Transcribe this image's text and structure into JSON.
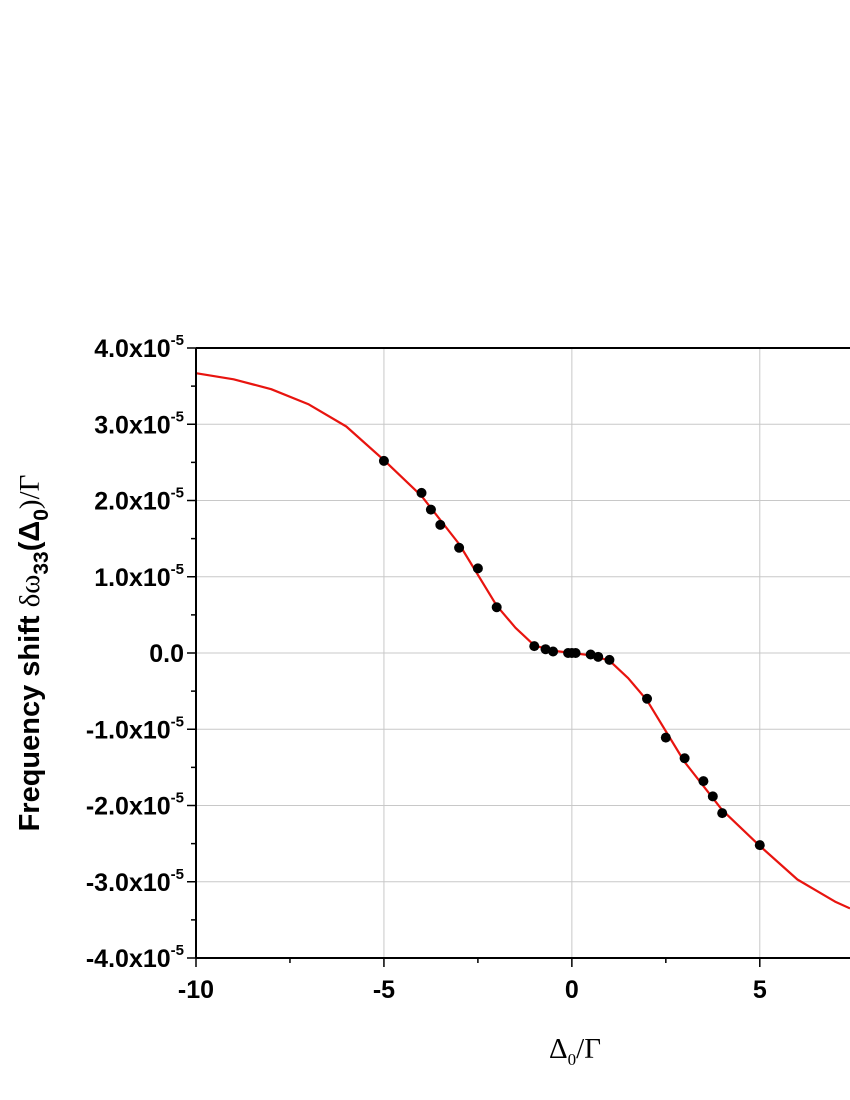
{
  "chart_data": {
    "type": "scatter",
    "title": "",
    "xlabel": {
      "main": "Δ",
      "sub": "0",
      "tail": "/Γ"
    },
    "ylabel": {
      "main": "Frequency shift ",
      "sym": "δω",
      "sub1": "33",
      "mid": "(Δ",
      "sub2": "0",
      "tail": ")/Γ"
    },
    "xlim": [
      -10,
      7.4
    ],
    "ylim": [
      -4e-05,
      4e-05
    ],
    "grid": true,
    "x_ticks": [
      {
        "value": -10,
        "label": "-10"
      },
      {
        "value": -5,
        "label": "-5"
      },
      {
        "value": 0,
        "label": "0"
      },
      {
        "value": 5,
        "label": "5"
      }
    ],
    "y_ticks": [
      {
        "value": 4e-05,
        "mant": "4.0x10",
        "exp": "-5"
      },
      {
        "value": 3e-05,
        "mant": "3.0x10",
        "exp": "-5"
      },
      {
        "value": 2e-05,
        "mant": "2.0x10",
        "exp": "-5"
      },
      {
        "value": 1e-05,
        "mant": "1.0x10",
        "exp": "-5"
      },
      {
        "value": 0,
        "mant": "0.0",
        "exp": ""
      },
      {
        "value": -1e-05,
        "mant": "-1.0x10",
        "exp": "-5"
      },
      {
        "value": -2e-05,
        "mant": "-2.0x10",
        "exp": "-5"
      },
      {
        "value": -3e-05,
        "mant": "-3.0x10",
        "exp": "-5"
      },
      {
        "value": -4e-05,
        "mant": "-4.0x10",
        "exp": "-5"
      }
    ],
    "series": [
      {
        "kind": "line",
        "color": "#e8140f",
        "x": [
          -10,
          -9,
          -8,
          -7,
          -6,
          -5,
          -4,
          -3,
          -2,
          -1.5,
          -1,
          -0.5,
          0,
          0.5,
          1,
          1.5,
          2,
          3,
          4,
          5,
          6,
          7,
          7.4
        ],
        "y": [
          3.67e-05,
          3.59e-05,
          3.46e-05,
          3.26e-05,
          2.97e-05,
          2.53e-05,
          2.06e-05,
          1.43e-05,
          6.2e-06,
          3.3e-06,
          1e-06,
          3e-07,
          0.0,
          -3e-07,
          -1e-06,
          -3.3e-06,
          -6.2e-06,
          -1.43e-05,
          -2.06e-05,
          -2.53e-05,
          -2.97e-05,
          -3.26e-05,
          -3.35e-05
        ]
      },
      {
        "kind": "scatter",
        "color": "#000000",
        "x": [
          -5,
          -4,
          -3.75,
          -3.5,
          -3,
          -2.5,
          -2,
          -1,
          -0.7,
          -0.5,
          -0.1,
          0,
          0.1,
          0.5,
          0.7,
          1,
          2,
          2.5,
          3,
          3.5,
          3.75,
          4,
          5
        ],
        "y": [
          2.52e-05,
          2.1e-05,
          1.88e-05,
          1.68e-05,
          1.38e-05,
          1.11e-05,
          6e-06,
          9e-07,
          5e-07,
          2e-07,
          0.0,
          0.0,
          0.0,
          -2e-07,
          -5e-07,
          -9e-07,
          -6e-06,
          -1.11e-05,
          -1.38e-05,
          -1.68e-05,
          -1.88e-05,
          -2.1e-05,
          -2.52e-05
        ]
      }
    ]
  }
}
